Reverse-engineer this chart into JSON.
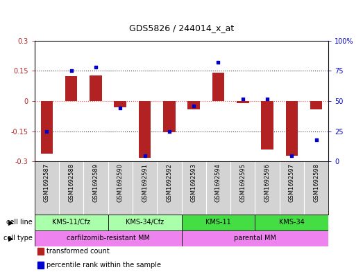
{
  "title": "GDS5826 / 244014_x_at",
  "samples": [
    "GSM1692587",
    "GSM1692588",
    "GSM1692589",
    "GSM1692590",
    "GSM1692591",
    "GSM1692592",
    "GSM1692593",
    "GSM1692594",
    "GSM1692595",
    "GSM1692596",
    "GSM1692597",
    "GSM1692598"
  ],
  "transformed_count": [
    -0.26,
    0.125,
    0.128,
    -0.03,
    -0.28,
    -0.155,
    -0.04,
    0.14,
    -0.01,
    -0.24,
    -0.27,
    -0.04
  ],
  "percentile_rank": [
    25,
    75,
    78,
    44,
    5,
    25,
    46,
    82,
    52,
    52,
    5,
    18
  ],
  "ylim_left": [
    -0.3,
    0.3
  ],
  "ylim_right": [
    0,
    100
  ],
  "yticks_left": [
    -0.3,
    -0.15,
    0,
    0.15,
    0.3
  ],
  "yticks_right": [
    0,
    25,
    50,
    75,
    100
  ],
  "bar_color": "#B22222",
  "dot_color": "#0000CD",
  "cell_line_groups": [
    {
      "label": "KMS-11/Cfz",
      "start": 0,
      "end": 2,
      "light": true
    },
    {
      "label": "KMS-34/Cfz",
      "start": 3,
      "end": 5,
      "light": true
    },
    {
      "label": "KMS-11",
      "start": 6,
      "end": 8,
      "light": false
    },
    {
      "label": "KMS-34",
      "start": 9,
      "end": 11,
      "light": false
    }
  ],
  "cell_type_groups": [
    {
      "label": "carfilzomib-resistant MM",
      "start": 0,
      "end": 5
    },
    {
      "label": "parental MM",
      "start": 6,
      "end": 11
    }
  ],
  "cell_line_light_color": "#AAFFAA",
  "cell_line_dark_color": "#44DD44",
  "cell_type_color": "#EE82EE",
  "legend_items": [
    {
      "label": "transformed count",
      "color": "#B22222"
    },
    {
      "label": "percentile rank within the sample",
      "color": "#0000CD"
    }
  ],
  "sample_label_bg": "#D3D3D3",
  "grid_lines": [
    -0.15,
    0.0,
    0.15
  ],
  "zero_line_color": "#FF4444",
  "nonzero_line_color": "#333333"
}
